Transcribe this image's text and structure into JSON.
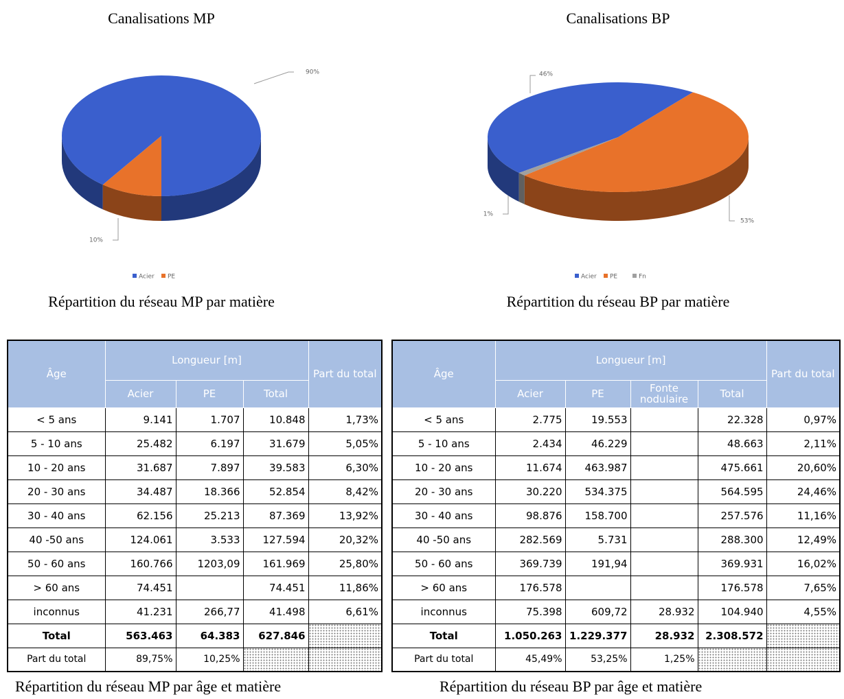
{
  "chart_data": [
    {
      "type": "pie",
      "title": "Canalisations MP",
      "categories": [
        "Acier",
        "PE"
      ],
      "values": [
        90,
        10
      ],
      "value_labels": [
        "90%",
        "10%"
      ],
      "colors": [
        "#3a5fcd",
        "#e8722a"
      ],
      "caption": "Répartition du réseau MP par matière"
    },
    {
      "type": "pie",
      "title": "Canalisations BP",
      "categories": [
        "Acier",
        "PE",
        "Fn"
      ],
      "values": [
        46,
        53,
        1
      ],
      "value_labels": [
        "46%",
        "53%",
        "1%"
      ],
      "colors": [
        "#3a5fcd",
        "#e8722a",
        "#a0a0a0"
      ],
      "caption": "Répartition du réseau BP par matière"
    }
  ],
  "tables": [
    {
      "header": {
        "age": "Âge",
        "group": "Longueur [m]",
        "share": "Part du total",
        "columns": [
          "Acier",
          "PE",
          "Total"
        ]
      },
      "rows": [
        [
          "< 5 ans",
          "9.141",
          "1.707",
          "10.848",
          "1,73%"
        ],
        [
          "5 - 10 ans",
          "25.482",
          "6.197",
          "31.679",
          "5,05%"
        ],
        [
          "10 - 20 ans",
          "31.687",
          "7.897",
          "39.583",
          "6,30%"
        ],
        [
          "20 - 30 ans",
          "34.487",
          "18.366",
          "52.854",
          "8,42%"
        ],
        [
          "30 - 40 ans",
          "62.156",
          "25.213",
          "87.369",
          "13,92%"
        ],
        [
          "40 -50 ans",
          "124.061",
          "3.533",
          "127.594",
          "20,32%"
        ],
        [
          "50 - 60 ans",
          "160.766",
          "1203,09",
          "161.969",
          "25,80%"
        ],
        [
          "> 60 ans",
          "74.451",
          null,
          "74.451",
          "11,86%"
        ],
        [
          "inconnus",
          "41.231",
          "266,77",
          "41.498",
          "6,61%"
        ]
      ],
      "footer": [
        [
          "Total",
          "563.463",
          "64.383",
          "627.846",
          null
        ],
        [
          "Part du total",
          "89,75%",
          "10,25%",
          null,
          null
        ]
      ],
      "caption": "Répartition du réseau MP par âge et matière"
    },
    {
      "header": {
        "age": "Âge",
        "group": "Longueur [m]",
        "share": "Part du total",
        "columns": [
          "Acier",
          "PE",
          "Fonte nodulaire",
          "Total"
        ]
      },
      "rows": [
        [
          "< 5 ans",
          "2.775",
          "19.553",
          null,
          "22.328",
          "0,97%"
        ],
        [
          "5 - 10 ans",
          "2.434",
          "46.229",
          null,
          "48.663",
          "2,11%"
        ],
        [
          "10 - 20 ans",
          "11.674",
          "463.987",
          null,
          "475.661",
          "20,60%"
        ],
        [
          "20 - 30 ans",
          "30.220",
          "534.375",
          null,
          "564.595",
          "24,46%"
        ],
        [
          "30 - 40 ans",
          "98.876",
          "158.700",
          null,
          "257.576",
          "11,16%"
        ],
        [
          "40 -50 ans",
          "282.569",
          "5.731",
          null,
          "288.300",
          "12,49%"
        ],
        [
          "50 - 60 ans",
          "369.739",
          "191,94",
          null,
          "369.931",
          "16,02%"
        ],
        [
          "> 60 ans",
          "176.578",
          null,
          null,
          "176.578",
          "7,65%"
        ],
        [
          "inconnus",
          "75.398",
          "609,72",
          "28.932",
          "104.940",
          "4,55%"
        ]
      ],
      "footer": [
        [
          "Total",
          "1.050.263",
          "1.229.377",
          "28.932",
          "2.308.572",
          null
        ],
        [
          "Part du total",
          "45,49%",
          "53,25%",
          "1,25%",
          null,
          null
        ]
      ],
      "caption": "Répartition du réseau BP par âge et matière"
    }
  ]
}
